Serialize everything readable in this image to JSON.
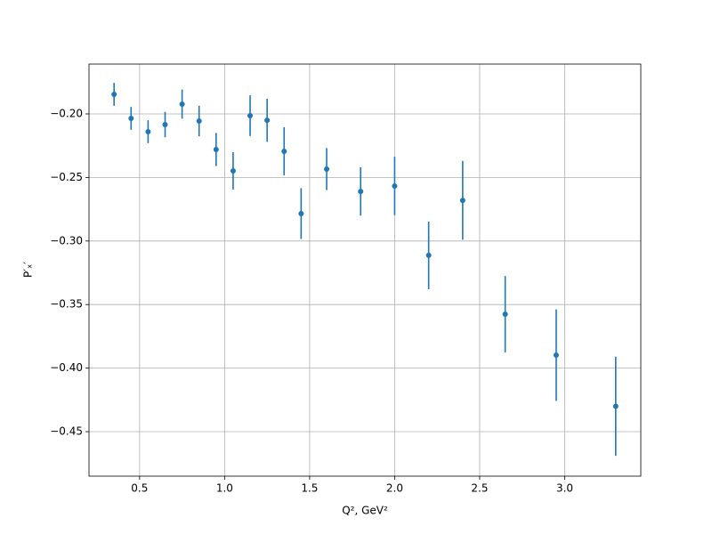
{
  "chart_data": {
    "type": "errorbar",
    "x_label": "Q², GeV²",
    "y_label": "P′ₓ′",
    "x": [
      0.35,
      0.45,
      0.55,
      0.65,
      0.75,
      0.85,
      0.95,
      1.05,
      1.15,
      1.25,
      1.35,
      1.45,
      1.6,
      1.8,
      2.0,
      2.2,
      2.4,
      2.65,
      2.95,
      3.3
    ],
    "values": [
      -0.1846,
      -0.2035,
      -0.214,
      -0.2084,
      -0.1923,
      -0.2056,
      -0.228,
      -0.2448,
      -0.2014,
      -0.205,
      -0.2294,
      -0.2784,
      -0.2434,
      -0.261,
      -0.2567,
      -0.3113,
      -0.268,
      -0.3576,
      -0.3898,
      -0.43
    ],
    "errors": [
      0.009,
      0.009,
      0.009,
      0.01,
      0.0115,
      0.012,
      0.013,
      0.0147,
      0.016,
      0.017,
      0.019,
      0.02,
      0.0165,
      0.019,
      0.023,
      0.0266,
      0.031,
      0.03,
      0.036,
      0.039
    ],
    "color": "#1f77b4",
    "xlim": [
      0.2025,
      3.4475
    ],
    "ylim": [
      -0.485,
      -0.1608
    ],
    "xticks": [
      {
        "value": 0.5,
        "label": "0.5"
      },
      {
        "value": 1.0,
        "label": "1.0"
      },
      {
        "value": 1.5,
        "label": "1.5"
      },
      {
        "value": 2.0,
        "label": "2.0"
      },
      {
        "value": 2.5,
        "label": "2.5"
      },
      {
        "value": 3.0,
        "label": "3.0"
      }
    ],
    "yticks": [
      {
        "value": -0.2,
        "label": "−0.20"
      },
      {
        "value": -0.25,
        "label": "−0.25"
      },
      {
        "value": -0.3,
        "label": "−0.30"
      },
      {
        "value": -0.35,
        "label": "−0.35"
      },
      {
        "value": -0.4,
        "label": "−0.40"
      },
      {
        "value": -0.45,
        "label": "−0.45"
      }
    ],
    "grid": true
  }
}
